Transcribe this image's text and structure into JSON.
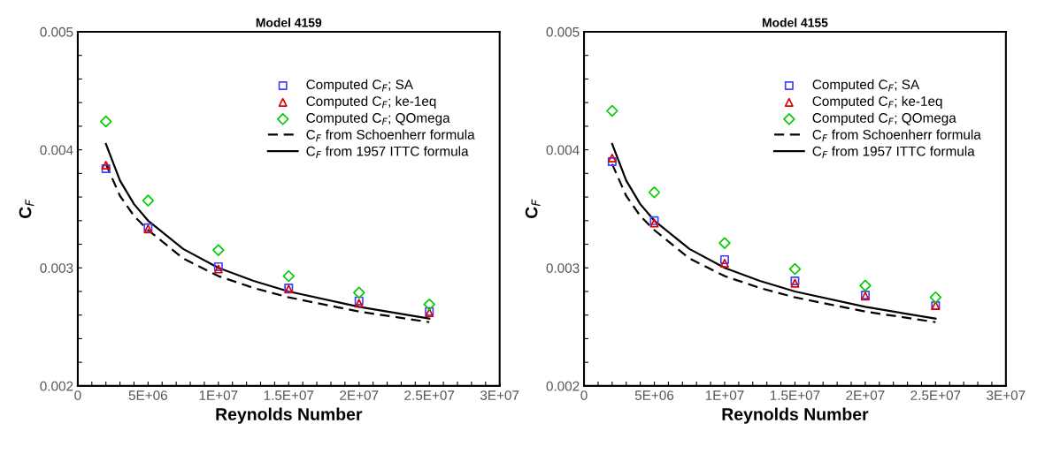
{
  "chart_data": [
    {
      "type": "scatter",
      "title": "Model 4159",
      "xlabel": "Reynolds Number",
      "ylabel": "C$_{F}$",
      "legend": "top right",
      "grid": false,
      "xlim": [
        0,
        30000000
      ],
      "ylim": [
        0.002,
        0.005
      ],
      "xticks": [
        {
          "value": 0,
          "label": "0"
        },
        {
          "value": 1000000,
          "label": null
        },
        {
          "value": 2000000,
          "label": null
        },
        {
          "value": 3000000,
          "label": null
        },
        {
          "value": 4000000,
          "label": null
        },
        {
          "value": 5000000,
          "label": "5E+06"
        },
        {
          "value": 6000000,
          "label": null
        },
        {
          "value": 7000000,
          "label": null
        },
        {
          "value": 8000000,
          "label": null
        },
        {
          "value": 9000000,
          "label": null
        },
        {
          "value": 10000000,
          "label": "1E+07"
        },
        {
          "value": 11000000,
          "label": null
        },
        {
          "value": 12000000,
          "label": null
        },
        {
          "value": 13000000,
          "label": null
        },
        {
          "value": 14000000,
          "label": null
        },
        {
          "value": 15000000,
          "label": "1.5E+07"
        },
        {
          "value": 16000000,
          "label": null
        },
        {
          "value": 17000000,
          "label": null
        },
        {
          "value": 18000000,
          "label": null
        },
        {
          "value": 19000000,
          "label": null
        },
        {
          "value": 20000000,
          "label": "2E+07"
        },
        {
          "value": 21000000,
          "label": null
        },
        {
          "value": 22000000,
          "label": null
        },
        {
          "value": 23000000,
          "label": null
        },
        {
          "value": 24000000,
          "label": null
        },
        {
          "value": 25000000,
          "label": "2.5E+07"
        },
        {
          "value": 26000000,
          "label": null
        },
        {
          "value": 27000000,
          "label": null
        },
        {
          "value": 28000000,
          "label": null
        },
        {
          "value": 29000000,
          "label": null
        },
        {
          "value": 30000000,
          "label": "3E+07"
        }
      ],
      "yticks": [
        0.002,
        {
          "value": 0.0022,
          "label": null
        },
        {
          "value": 0.0024,
          "label": null
        },
        {
          "value": 0.0026,
          "label": null
        },
        {
          "value": 0.0028,
          "label": null
        },
        0.003,
        {
          "value": 0.0032,
          "label": null
        },
        {
          "value": 0.0034,
          "label": null
        },
        {
          "value": 0.0036,
          "label": null
        },
        {
          "value": 0.0038,
          "label": null
        },
        0.004,
        {
          "value": 0.0042,
          "label": null
        },
        {
          "value": 0.0044,
          "label": null
        },
        {
          "value": 0.0046,
          "label": null
        },
        {
          "value": 0.0048,
          "label": null
        },
        0.005
      ],
      "series": [
        {
          "name": "Computed C$_{F}$; SA",
          "marker": "square",
          "color": "#4040ff",
          "x": [
            2000000,
            5000000,
            10000000,
            15000000,
            20000000,
            25000000
          ],
          "values": [
            0.00384,
            0.00334,
            0.00301,
            0.00283,
            0.00272,
            0.00263
          ]
        },
        {
          "name": "Computed C$_{F}$; ke-1eq",
          "marker": "triangle",
          "color": "#e00000",
          "x": [
            2000000,
            5000000,
            10000000,
            15000000,
            20000000,
            25000000
          ],
          "values": [
            0.00387,
            0.00333,
            0.00299,
            0.00282,
            0.0027,
            0.00262
          ]
        },
        {
          "name": "Computed C$_{F}$; QOmega",
          "marker": "diamond",
          "color": "#00cc00",
          "x": [
            2000000,
            5000000,
            10000000,
            15000000,
            20000000,
            25000000
          ],
          "values": [
            0.00424,
            0.00357,
            0.00315,
            0.00293,
            0.00279,
            0.00269
          ]
        },
        {
          "name": "C$_{F}$ from Schoenherr formula",
          "type": "line",
          "line_style": "dashed",
          "color": "#000000",
          "x": [
            2000000,
            3000000,
            4000000,
            5000000,
            7500000,
            10000000,
            12500000,
            15000000,
            20000000,
            25000000
          ],
          "values": [
            0.00388,
            0.00361,
            0.00344,
            0.00332,
            0.00308,
            0.00293,
            0.00283,
            0.00275,
            0.00263,
            0.00254
          ]
        },
        {
          "name": "C$_{F}$ from 1957 ITTC formula",
          "type": "line",
          "line_style": "solid",
          "color": "#000000",
          "x": [
            2000000,
            3000000,
            4000000,
            5000000,
            7500000,
            10000000,
            12500000,
            15000000,
            20000000,
            25000000
          ],
          "values": [
            0.00405,
            0.00374,
            0.00354,
            0.0034,
            0.00316,
            0.003,
            0.00289,
            0.0028,
            0.00267,
            0.00257
          ]
        }
      ]
    },
    {
      "type": "scatter",
      "title": "Model 4155",
      "xlabel": "Reynolds Number",
      "ylabel": "C$_{F}$",
      "legend": "top right",
      "grid": false,
      "xlim": [
        0,
        30000000
      ],
      "ylim": [
        0.002,
        0.005
      ],
      "xticks": [
        {
          "value": 0,
          "label": "0"
        },
        {
          "value": 1000000,
          "label": null
        },
        {
          "value": 2000000,
          "label": null
        },
        {
          "value": 3000000,
          "label": null
        },
        {
          "value": 4000000,
          "label": null
        },
        {
          "value": 5000000,
          "label": "5E+06"
        },
        {
          "value": 6000000,
          "label": null
        },
        {
          "value": 7000000,
          "label": null
        },
        {
          "value": 8000000,
          "label": null
        },
        {
          "value": 9000000,
          "label": null
        },
        {
          "value": 10000000,
          "label": "1E+07"
        },
        {
          "value": 11000000,
          "label": null
        },
        {
          "value": 12000000,
          "label": null
        },
        {
          "value": 13000000,
          "label": null
        },
        {
          "value": 14000000,
          "label": null
        },
        {
          "value": 15000000,
          "label": "1.5E+07"
        },
        {
          "value": 16000000,
          "label": null
        },
        {
          "value": 17000000,
          "label": null
        },
        {
          "value": 18000000,
          "label": null
        },
        {
          "value": 19000000,
          "label": null
        },
        {
          "value": 20000000,
          "label": "2E+07"
        },
        {
          "value": 21000000,
          "label": null
        },
        {
          "value": 22000000,
          "label": null
        },
        {
          "value": 23000000,
          "label": null
        },
        {
          "value": 24000000,
          "label": null
        },
        {
          "value": 25000000,
          "label": "2.5E+07"
        },
        {
          "value": 26000000,
          "label": null
        },
        {
          "value": 27000000,
          "label": null
        },
        {
          "value": 28000000,
          "label": null
        },
        {
          "value": 29000000,
          "label": null
        },
        {
          "value": 30000000,
          "label": "3E+07"
        }
      ],
      "yticks": [
        0.002,
        {
          "value": 0.0022,
          "label": null
        },
        {
          "value": 0.0024,
          "label": null
        },
        {
          "value": 0.0026,
          "label": null
        },
        {
          "value": 0.0028,
          "label": null
        },
        0.003,
        {
          "value": 0.0032,
          "label": null
        },
        {
          "value": 0.0034,
          "label": null
        },
        {
          "value": 0.0036,
          "label": null
        },
        {
          "value": 0.0038,
          "label": null
        },
        0.004,
        {
          "value": 0.0042,
          "label": null
        },
        {
          "value": 0.0044,
          "label": null
        },
        {
          "value": 0.0046,
          "label": null
        },
        {
          "value": 0.0048,
          "label": null
        },
        0.005
      ],
      "series": [
        {
          "name": "Computed C$_{F}$; SA",
          "marker": "square",
          "color": "#4040ff",
          "x": [
            2000000,
            5000000,
            10000000,
            15000000,
            20000000,
            25000000
          ],
          "values": [
            0.0039,
            0.0034,
            0.00307,
            0.00289,
            0.00277,
            0.00268
          ]
        },
        {
          "name": "Computed C$_{F}$; ke-1eq",
          "marker": "triangle",
          "color": "#e00000",
          "x": [
            2000000,
            5000000,
            10000000,
            15000000,
            20000000,
            25000000
          ],
          "values": [
            0.00393,
            0.00338,
            0.00304,
            0.00287,
            0.00276,
            0.00268
          ]
        },
        {
          "name": "Computed C$_{F}$; QOmega",
          "marker": "diamond",
          "color": "#00cc00",
          "x": [
            2000000,
            5000000,
            10000000,
            15000000,
            20000000,
            25000000
          ],
          "values": [
            0.00433,
            0.00364,
            0.00321,
            0.00299,
            0.00285,
            0.00275
          ]
        },
        {
          "name": "C$_{F}$ from Schoenherr formula",
          "type": "line",
          "line_style": "dashed",
          "color": "#000000",
          "x": [
            2000000,
            3000000,
            4000000,
            5000000,
            7500000,
            10000000,
            12500000,
            15000000,
            20000000,
            25000000
          ],
          "values": [
            0.00388,
            0.00361,
            0.00344,
            0.00332,
            0.00308,
            0.00293,
            0.00283,
            0.00275,
            0.00263,
            0.00254
          ]
        },
        {
          "name": "C$_{F}$ from 1957 ITTC formula",
          "type": "line",
          "line_style": "solid",
          "color": "#000000",
          "x": [
            2000000,
            3000000,
            4000000,
            5000000,
            7500000,
            10000000,
            12500000,
            15000000,
            20000000,
            25000000
          ],
          "values": [
            0.00405,
            0.00374,
            0.00354,
            0.0034,
            0.00316,
            0.003,
            0.00289,
            0.0028,
            0.00267,
            0.00257
          ]
        }
      ]
    }
  ]
}
